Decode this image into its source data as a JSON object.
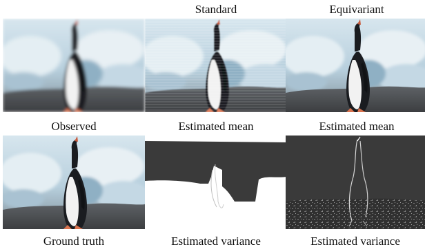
{
  "columns": {
    "standard": "Standard",
    "equivariant": "Equivariant"
  },
  "captions": {
    "observed": "Observed",
    "standard_mean": "Estimated mean",
    "equivariant_mean": "Estimated mean",
    "ground_truth": "Ground truth",
    "standard_variance": "Estimated variance",
    "equivariant_variance": "Estimated variance"
  },
  "palette": {
    "sky_ice": "#c9dbe6",
    "ice_shadow": "#8fb0c4",
    "rock": "#4d4f52",
    "penguin_black": "#1a1c20",
    "penguin_belly": "#f2f2f2",
    "feet": "#d9734f",
    "variance_dark": "#3a3a3a",
    "variance_white": "#ffffff"
  }
}
